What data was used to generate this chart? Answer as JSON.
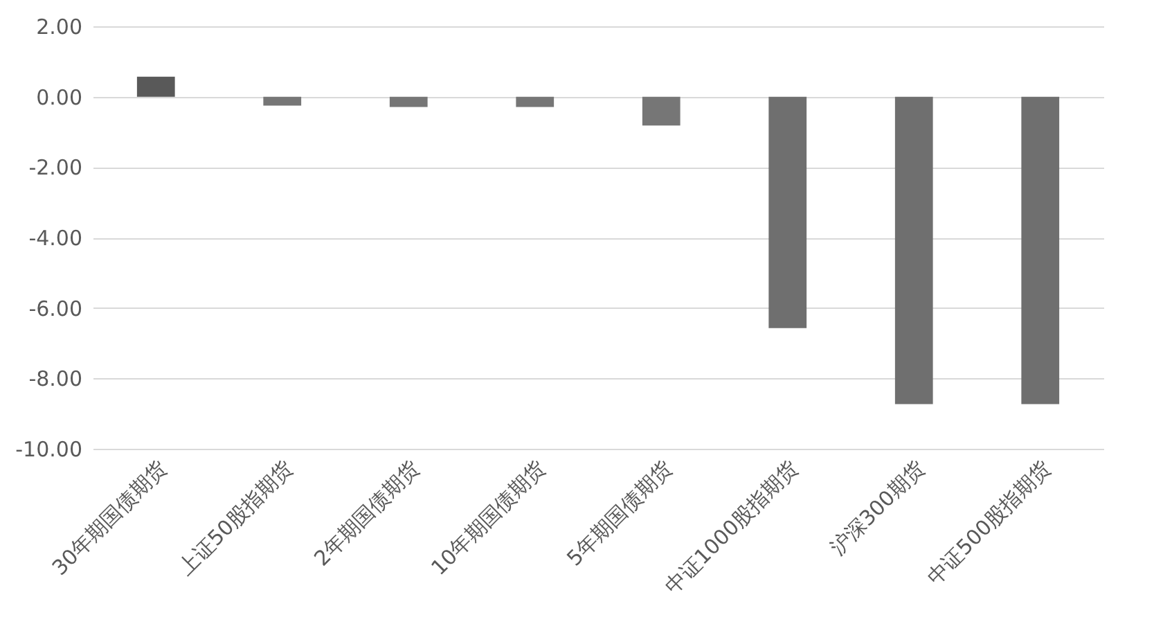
{
  "chart_data": {
    "type": "bar",
    "categories": [
      "30年期国债期货",
      "上证50股指期货",
      "2年期国债期货",
      "10年期国债期货",
      "5年期国债期货",
      "中证1000股指期货",
      "沪深300期货",
      "中证500股指期货"
    ],
    "values": [
      0.57,
      -0.25,
      -0.29,
      -0.29,
      -0.82,
      -6.57,
      -8.73,
      -8.73
    ],
    "colors": [
      "#595959",
      "#767676",
      "#767676",
      "#767676",
      "#767676",
      "#6f6f6f",
      "#6f6f6f",
      "#6f6f6f"
    ],
    "ylim": [
      -10,
      2
    ],
    "yticks": [
      {
        "value": -10,
        "label": "-10.00"
      },
      {
        "value": -8,
        "label": "-8.00"
      },
      {
        "value": -6,
        "label": "-6.00"
      },
      {
        "value": -4,
        "label": "-4.00"
      },
      {
        "value": -2,
        "label": "-2.00"
      },
      {
        "value": 0,
        "label": "0.00"
      },
      {
        "value": 2,
        "label": "2.00"
      }
    ],
    "grid": "y"
  }
}
